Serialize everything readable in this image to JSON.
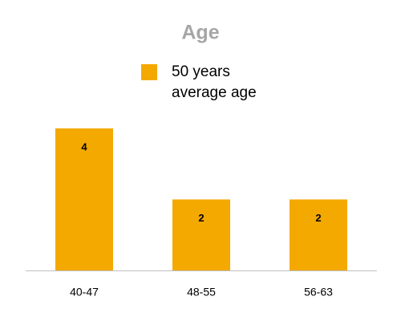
{
  "chart_data": {
    "type": "bar",
    "title": "Age",
    "categories": [
      "40-47",
      "48-55",
      "56-63"
    ],
    "series": [
      {
        "name": "50 years average age",
        "color": "#f4a900",
        "values": [
          4,
          2,
          2
        ]
      }
    ],
    "ylim": [
      0,
      4
    ]
  }
}
